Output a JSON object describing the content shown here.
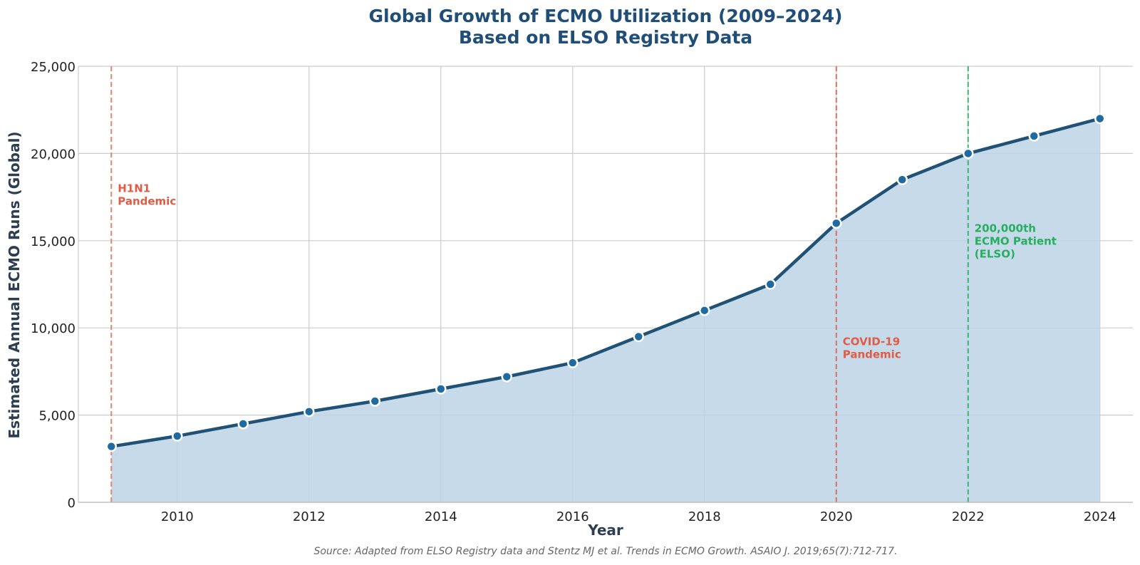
{
  "chart_data": {
    "type": "area",
    "title": "Global Growth of ECMO Utilization (2009–2024)",
    "subtitle": "Based on ELSO Registry Data",
    "xlabel": "Year",
    "ylabel": "Estimated Annual ECMO Runs (Global)",
    "x": [
      2009,
      2010,
      2011,
      2012,
      2013,
      2014,
      2015,
      2016,
      2017,
      2018,
      2019,
      2020,
      2021,
      2022,
      2023,
      2024
    ],
    "values": [
      3200,
      3800,
      4500,
      5200,
      5800,
      6500,
      7200,
      8000,
      9500,
      11000,
      12500,
      16000,
      18500,
      20000,
      21000,
      22000
    ],
    "xlim": [
      2008.5,
      2024.5
    ],
    "ylim": [
      0,
      25000
    ],
    "x_ticks": [
      2010,
      2012,
      2014,
      2016,
      2018,
      2020,
      2022,
      2024
    ],
    "x_tick_labels": [
      "2010",
      "2012",
      "2014",
      "2016",
      "2018",
      "2020",
      "2022",
      "2024"
    ],
    "y_ticks": [
      0,
      5000,
      10000,
      15000,
      20000,
      25000
    ],
    "y_tick_labels": [
      "0",
      "5,000",
      "10,000",
      "15,000",
      "20,000",
      "25,000"
    ],
    "grid": true,
    "annotations": [
      {
        "x": 2009,
        "label_lines": [
          "H1N1",
          "Pandemic"
        ],
        "label_y": 17800,
        "color": "#e05c45",
        "line_color": "#e8836b"
      },
      {
        "x": 2020,
        "label_lines": [
          "COVID-19",
          "Pandemic"
        ],
        "label_y": 9000,
        "color": "#e05c45",
        "line_color": "#d9705f"
      },
      {
        "x": 2022,
        "label_lines": [
          "200,000th",
          "ECMO Patient",
          "(ELSO)"
        ],
        "label_y": 15500,
        "color": "#27ae60",
        "line_color": "#3cb371"
      }
    ],
    "colors": {
      "line": "#1f5276",
      "fill": "#bcd4e6",
      "marker": "#1f6aa0",
      "marker_edge": "#ffffff",
      "grid": "#cccccc"
    },
    "source": "Source: Adapted from ELSO Registry data and Stentz MJ et al. Trends in ECMO Growth. ASAIO J. 2019;65(7):712-717."
  }
}
